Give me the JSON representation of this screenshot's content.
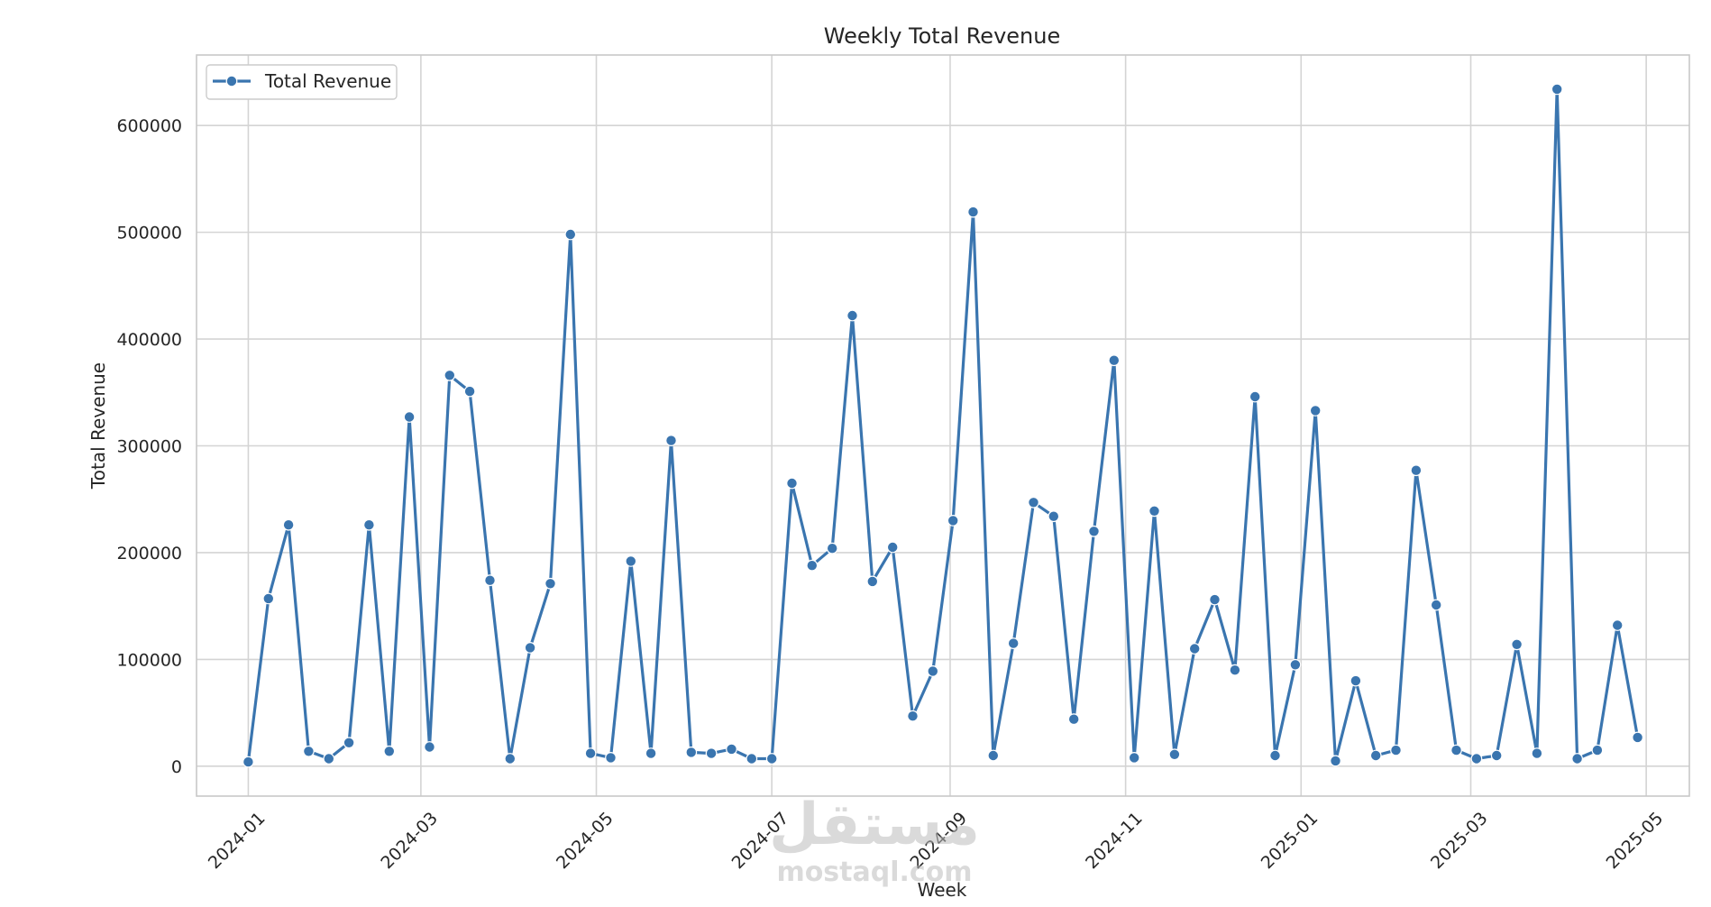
{
  "chart_data": {
    "type": "line",
    "title": "Weekly Total Revenue",
    "xlabel": "Week",
    "ylabel": "Total Revenue",
    "x": [
      "2024-01-01",
      "2024-01-08",
      "2024-01-15",
      "2024-01-22",
      "2024-01-29",
      "2024-02-05",
      "2024-02-12",
      "2024-02-19",
      "2024-02-26",
      "2024-03-04",
      "2024-03-11",
      "2024-03-18",
      "2024-03-25",
      "2024-04-01",
      "2024-04-08",
      "2024-04-15",
      "2024-04-22",
      "2024-04-29",
      "2024-05-06",
      "2024-05-13",
      "2024-05-20",
      "2024-05-27",
      "2024-06-03",
      "2024-06-10",
      "2024-06-17",
      "2024-06-24",
      "2024-07-01",
      "2024-07-08",
      "2024-07-15",
      "2024-07-22",
      "2024-07-29",
      "2024-08-05",
      "2024-08-12",
      "2024-08-19",
      "2024-08-26",
      "2024-09-02",
      "2024-09-09",
      "2024-09-16",
      "2024-09-23",
      "2024-09-30",
      "2024-10-07",
      "2024-10-14",
      "2024-10-21",
      "2024-10-28",
      "2024-11-04",
      "2024-11-11",
      "2024-11-18",
      "2024-11-25",
      "2024-12-02",
      "2024-12-09",
      "2024-12-16",
      "2024-12-23",
      "2024-12-30",
      "2025-01-06",
      "2025-01-13",
      "2025-01-20",
      "2025-01-27",
      "2025-02-03",
      "2025-02-10",
      "2025-02-17",
      "2025-02-24",
      "2025-03-03",
      "2025-03-10",
      "2025-03-17",
      "2025-03-24",
      "2025-03-31",
      "2025-04-07",
      "2025-04-14",
      "2025-04-21",
      "2025-04-28"
    ],
    "series": [
      {
        "name": "Total Revenue",
        "color": "#3a75af",
        "marker": "circle",
        "values": [
          4000,
          157000,
          226000,
          14000,
          7000,
          22000,
          226000,
          14000,
          327000,
          18000,
          366000,
          351000,
          174000,
          7000,
          111000,
          171000,
          498000,
          12000,
          8000,
          192000,
          12000,
          305000,
          13000,
          12000,
          16000,
          7000,
          7000,
          265000,
          188000,
          204000,
          422000,
          173000,
          205000,
          47000,
          89000,
          230000,
          519000,
          10000,
          115000,
          247000,
          234000,
          44000,
          220000,
          380000,
          8000,
          239000,
          11000,
          110000,
          156000,
          90000,
          346000,
          10000,
          95000,
          333000,
          5000,
          80000,
          10000,
          15000,
          277000,
          151000,
          15000,
          7000,
          10000,
          114000,
          12000,
          634000,
          7000,
          15000,
          132000,
          27000
        ]
      }
    ],
    "x_ticks": [
      "2024-01",
      "2024-03",
      "2024-05",
      "2024-07",
      "2024-09",
      "2024-11",
      "2025-01",
      "2025-03",
      "2025-05"
    ],
    "y_ticks": [
      0,
      100000,
      200000,
      300000,
      400000,
      500000,
      600000
    ],
    "ylim": [
      -28000,
      666000
    ],
    "xlim": [
      "2023-12-14",
      "2025-05-16"
    ],
    "grid": true,
    "legend": {
      "position": "top-left",
      "entries": [
        "Total Revenue"
      ]
    }
  },
  "watermark": {
    "arabic": "مستقل",
    "latin": "mostaql.com"
  }
}
